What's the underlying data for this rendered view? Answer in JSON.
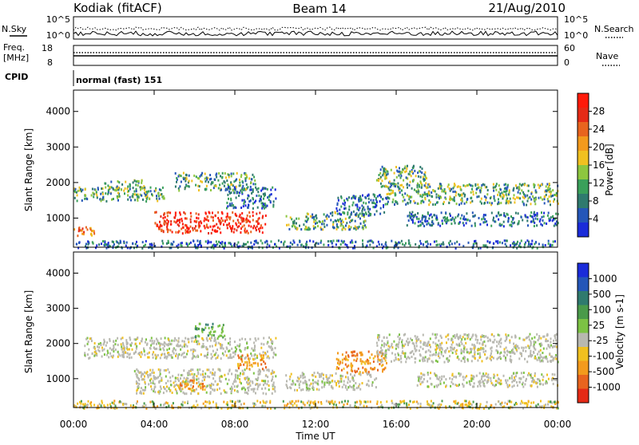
{
  "header": {
    "station": "Kodiak (fitACF)",
    "beam": "Beam 14",
    "date": "21/Aug/2010"
  },
  "top_panels": {
    "nsky_label": "N.Sky",
    "nsearch_label": "N.Search",
    "nsky_ticks": [
      "10^5",
      "10^0"
    ],
    "nsearch_ticks": [
      "10^5",
      "10^0"
    ],
    "freq_label_1": "Freq.",
    "freq_label_2": "[MHz]",
    "freq_ticks": [
      "18",
      "8"
    ],
    "nave_label": "Nave",
    "nave_ticks": [
      "60",
      "0"
    ],
    "cpid_label": "CPID",
    "cpid_value": "normal (fast) 151"
  },
  "colors": {
    "power": [
      "#1a2bd9",
      "#2456b8",
      "#2f7a6e",
      "#3aa05a",
      "#8dc63f",
      "#f0c020",
      "#f39a1c",
      "#e8641e",
      "#e52a16",
      "#ff1a0a"
    ],
    "velocity": [
      "#1a2bd9",
      "#2456b8",
      "#2f7a6e",
      "#4a9a4a",
      "#7cc244",
      "#b8b8b0",
      "#f0c020",
      "#f39a1c",
      "#e8641e",
      "#e52a16"
    ],
    "ground_scatter": "#b8b8b0"
  },
  "chart_data": [
    {
      "type": "heatmap",
      "panel": "power",
      "ylabel": "Slant Range [km]",
      "xlabel": "Time UT",
      "x_ticks": [
        "00:00",
        "04:00",
        "08:00",
        "12:00",
        "16:00",
        "20:00",
        "00:00"
      ],
      "y_ticks": [
        "1000",
        "2000",
        "3000",
        "4000"
      ],
      "xlim_hours": [
        0,
        24
      ],
      "ylim_km": [
        180,
        4600
      ],
      "colorbar": {
        "label": "Power [dB]",
        "ticks": [
          "4",
          "8",
          "12",
          "16",
          "20",
          "24",
          "28"
        ]
      },
      "regions": [
        {
          "t0": 0.0,
          "t1": 1.0,
          "r0": 500,
          "r1": 800,
          "level": "high"
        },
        {
          "t0": 0.0,
          "t1": 4.5,
          "r0": 1500,
          "r1": 1900,
          "level": "mid"
        },
        {
          "t0": 1.5,
          "t1": 3.5,
          "r0": 1800,
          "r1": 2100,
          "level": "mid"
        },
        {
          "t0": 4.0,
          "t1": 9.5,
          "r0": 600,
          "r1": 1200,
          "level": "max"
        },
        {
          "t0": 5.0,
          "t1": 9.0,
          "r0": 1800,
          "r1": 2300,
          "level": "mid"
        },
        {
          "t0": 7.5,
          "t1": 10.0,
          "r0": 1300,
          "r1": 1900,
          "level": "low"
        },
        {
          "t0": 10.5,
          "t1": 14.5,
          "r0": 700,
          "r1": 1200,
          "level": "mid"
        },
        {
          "t0": 13.0,
          "t1": 15.5,
          "r0": 1100,
          "r1": 1700,
          "level": "low"
        },
        {
          "t0": 15.0,
          "t1": 17.5,
          "r0": 1900,
          "r1": 2500,
          "level": "mid"
        },
        {
          "t0": 15.5,
          "t1": 24.0,
          "r0": 1400,
          "r1": 2000,
          "level": "mid"
        },
        {
          "t0": 16.5,
          "t1": 24.0,
          "r0": 800,
          "r1": 1200,
          "level": "low"
        },
        {
          "t0": 0.0,
          "t1": 24.0,
          "r0": 180,
          "r1": 400,
          "level": "low"
        }
      ]
    },
    {
      "type": "heatmap",
      "panel": "velocity",
      "ylabel": "Slant Range [km]",
      "xlabel": "Time UT",
      "x_ticks": [
        "00:00",
        "04:00",
        "08:00",
        "12:00",
        "16:00",
        "20:00",
        "00:00"
      ],
      "y_ticks": [
        "1000",
        "2000",
        "3000",
        "4000"
      ],
      "xlim_hours": [
        0,
        24
      ],
      "ylim_km": [
        180,
        4600
      ],
      "colorbar": {
        "label": "Velocity [m s-1]",
        "ticks": [
          "1000",
          "500",
          "100",
          "25",
          "-25",
          "-100",
          "-500",
          "-1000"
        ]
      },
      "regions": [
        {
          "t0": 0.5,
          "t1": 10.0,
          "r0": 1600,
          "r1": 2200,
          "level": "gs"
        },
        {
          "t0": 3.0,
          "t1": 10.0,
          "r0": 600,
          "r1": 1300,
          "level": "gs"
        },
        {
          "t0": 5.0,
          "t1": 6.5,
          "r0": 700,
          "r1": 1000,
          "level": "neg_mid"
        },
        {
          "t0": 6.0,
          "t1": 7.5,
          "r0": 2200,
          "r1": 2600,
          "level": "pos_low"
        },
        {
          "t0": 8.0,
          "t1": 9.5,
          "r0": 1300,
          "r1": 1700,
          "level": "neg_mid"
        },
        {
          "t0": 10.5,
          "t1": 15.0,
          "r0": 700,
          "r1": 1200,
          "level": "gs"
        },
        {
          "t0": 13.0,
          "t1": 15.5,
          "r0": 1200,
          "r1": 1800,
          "level": "neg_mid"
        },
        {
          "t0": 15.0,
          "t1": 24.0,
          "r0": 1500,
          "r1": 2300,
          "level": "gs"
        },
        {
          "t0": 17.0,
          "t1": 24.0,
          "r0": 800,
          "r1": 1200,
          "level": "gs"
        },
        {
          "t0": 0.0,
          "t1": 24.0,
          "r0": 180,
          "r1": 400,
          "level": "neg_low"
        }
      ]
    }
  ]
}
